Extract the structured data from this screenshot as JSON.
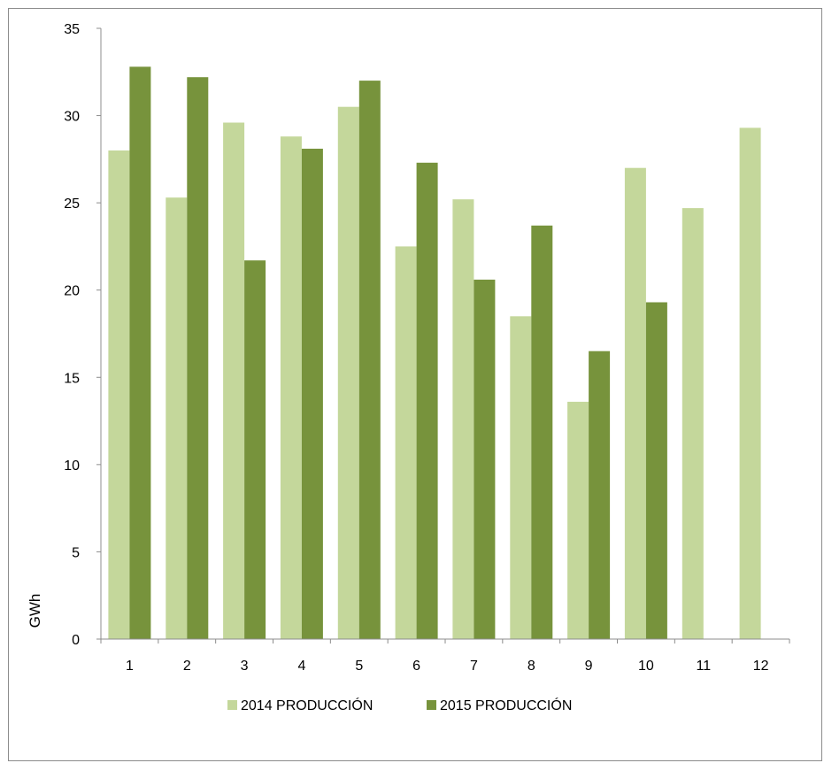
{
  "chart_data": {
    "type": "bar",
    "categories": [
      "1",
      "2",
      "3",
      "4",
      "5",
      "6",
      "7",
      "8",
      "9",
      "10",
      "11",
      "12"
    ],
    "series": [
      {
        "name": "2014 PRODUCCIÓN",
        "color": "#c4d79b",
        "values": [
          28.0,
          25.3,
          29.6,
          28.8,
          30.5,
          22.5,
          25.2,
          18.5,
          13.6,
          27.0,
          24.7,
          29.3
        ]
      },
      {
        "name": "2015 PRODUCCIÓN",
        "color": "#77933c",
        "values": [
          32.8,
          32.2,
          21.7,
          28.1,
          32.0,
          27.3,
          20.6,
          23.7,
          16.5,
          19.3,
          null,
          null
        ]
      }
    ],
    "ylabel": "GWh",
    "xlabel": "",
    "ylim": [
      0,
      35
    ],
    "yticks": [
      "0",
      "5",
      "10",
      "15",
      "20",
      "25",
      "30",
      "35"
    ],
    "grid": false,
    "legend_position": "bottom"
  }
}
